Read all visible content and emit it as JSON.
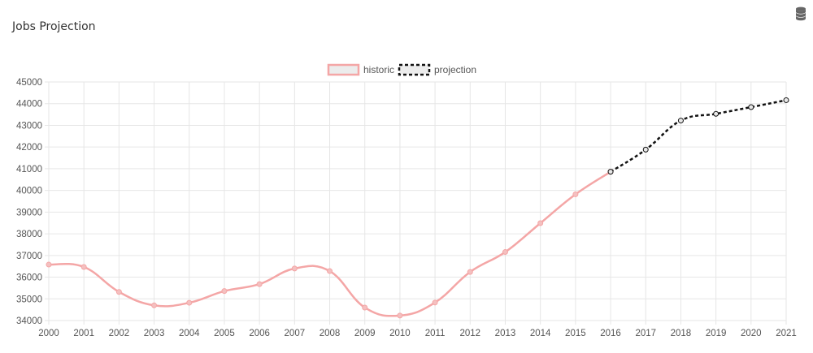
{
  "panel": {
    "title": "Jobs Projection",
    "toolbar_icon": "database-icon"
  },
  "chart_data": {
    "type": "line",
    "title": "Jobs Projection",
    "xlabel": "",
    "ylabel": "",
    "x": [
      "2000",
      "2001",
      "2002",
      "2003",
      "2004",
      "2005",
      "2006",
      "2007",
      "2008",
      "2009",
      "2010",
      "2011",
      "2012",
      "2013",
      "2014",
      "2015",
      "2016",
      "2017",
      "2018",
      "2019",
      "2020",
      "2021"
    ],
    "ylim": [
      34000,
      45000
    ],
    "y_ticks": [
      34000,
      35000,
      36000,
      37000,
      38000,
      39000,
      40000,
      41000,
      42000,
      43000,
      44000,
      45000
    ],
    "grid": true,
    "legend_placement": "top-center",
    "series": [
      {
        "name": "historic",
        "color": "#f4a6a6",
        "style": "solid",
        "values": [
          36580,
          36470,
          35320,
          34700,
          34820,
          35360,
          35680,
          36400,
          36280,
          34600,
          34230,
          34830,
          36240,
          37160,
          38490,
          39820,
          40860,
          null,
          null,
          null,
          null,
          null
        ]
      },
      {
        "name": "projection",
        "color": "#111111",
        "style": "dashed",
        "values": [
          null,
          null,
          null,
          null,
          null,
          null,
          null,
          null,
          null,
          null,
          null,
          null,
          null,
          null,
          null,
          null,
          40860,
          41880,
          43220,
          43530,
          43840,
          44160
        ]
      }
    ]
  }
}
